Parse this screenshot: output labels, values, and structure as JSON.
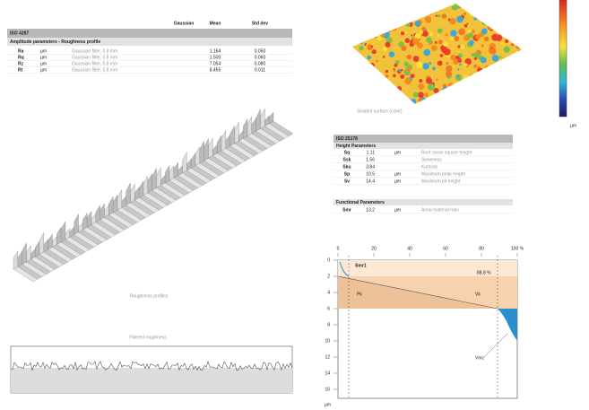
{
  "iso4287": {
    "header": [
      "Gaussian",
      "Mean",
      "Std dev"
    ],
    "title": "ISO 4287",
    "subtitle": "Amplitude parameters - Roughness profile",
    "rows": [
      [
        "Ra",
        "µm",
        "Gaussian filter, 0.8 mm",
        "1.164",
        "0.050"
      ],
      [
        "Rq",
        "µm",
        "Gaussian filter, 0.8 mm",
        "1.500",
        "0.060"
      ],
      [
        "Rz",
        "µm",
        "Gaussian filter, 0.8 mm",
        "7.054",
        "0.080"
      ],
      [
        "Rt",
        "µm",
        "Gaussian filter, 0.8 mm",
        "8.455",
        "0.011"
      ]
    ]
  },
  "surface": {
    "caption": "Shaded surface (color)",
    "unit": "µm"
  },
  "profile3d": {
    "caption": "Roughness profiles"
  },
  "profile": {
    "caption": "Filtered roughness"
  },
  "iso25178": {
    "title": "ISO 25178",
    "height_title": "Height Parameters",
    "height_rows": [
      [
        "Sq",
        "1.11",
        "µm",
        "Root mean square height"
      ],
      [
        "Ssk",
        "1.56",
        "",
        "Skewness"
      ],
      [
        "Sku",
        "3.84",
        "",
        "Kurtosis"
      ],
      [
        "Sp",
        "10.5",
        "µm",
        "Maximum peak height"
      ],
      [
        "Sv",
        "14.4",
        "µm",
        "Maximum pit height"
      ]
    ],
    "functional_title": "Functional Parameters",
    "functional_rows": [
      [
        "Smr",
        "13.2",
        "µm",
        "Areal material ratio"
      ]
    ]
  },
  "abbott": {
    "xticks": [
      "0",
      "20",
      "40",
      "60",
      "80",
      "100 %"
    ],
    "yticks": [
      "0",
      "2",
      "4",
      "6",
      "8",
      "10",
      "12",
      "14",
      "16"
    ],
    "y_unit": "µm",
    "smr_label": "Smr1",
    "smr2_label": "88.8 %",
    "pk_label": "Pk",
    "vk_label": "Vk",
    "vmc_label": "Vmc"
  }
}
